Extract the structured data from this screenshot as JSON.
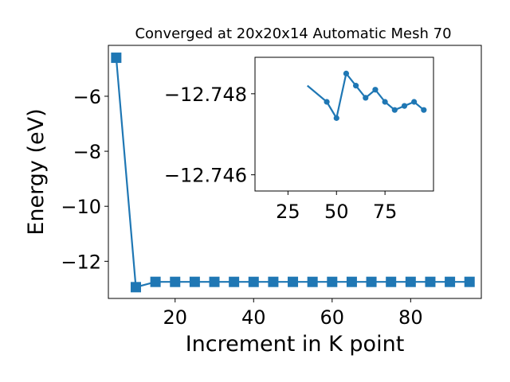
{
  "chart_data": [
    {
      "type": "line",
      "role": "main",
      "title": "Converged at 20x20x14 Automatic Mesh 70",
      "xlabel": "Increment in K point",
      "ylabel": "Energy (eV)",
      "xlim": [
        3,
        98
      ],
      "ylim": [
        -13.35,
        -4.15
      ],
      "xticks": [
        20,
        40,
        60,
        80
      ],
      "yticks": [
        -12,
        -10,
        -8,
        -6
      ],
      "grid": false,
      "marker": "square",
      "color": "#1f77b4",
      "series": [
        {
          "x": [
            5,
            10,
            15,
            20,
            25,
            30,
            35,
            40,
            45,
            50,
            55,
            60,
            65,
            70,
            75,
            80,
            85,
            90,
            95
          ],
          "y": [
            -4.6,
            -12.94,
            -12.7475,
            -12.7481,
            -12.7473,
            -12.7478,
            -12.7482,
            -12.7486,
            -12.7478,
            -12.7474,
            -12.7485,
            -12.7482,
            -12.7479,
            -12.7481,
            -12.7478,
            -12.7476,
            -12.7477,
            -12.7478,
            -12.7476
          ]
        }
      ]
    },
    {
      "type": "line",
      "role": "inset",
      "xlim": [
        8,
        100
      ],
      "ylim": [
        -12.7456,
        -12.7489
      ],
      "xticks": [
        25,
        50,
        75
      ],
      "yticks": [
        -12.748,
        -12.746
      ],
      "ytick_labels": [
        "−12.748",
        "−12.746"
      ],
      "grid": false,
      "marker": "circle",
      "color": "#1f77b4",
      "series": [
        {
          "x": [
            45,
            50,
            55,
            60,
            65,
            70,
            75,
            80,
            85,
            90,
            95
          ],
          "y": [
            -12.7478,
            -12.7474,
            -12.7485,
            -12.7482,
            -12.7479,
            -12.7481,
            -12.7478,
            -12.7476,
            -12.7477,
            -12.7478,
            -12.7476
          ]
        }
      ],
      "entry_segment": {
        "x": [
          35,
          45
        ],
        "y": [
          -12.7482,
          -12.7478
        ]
      }
    }
  ]
}
